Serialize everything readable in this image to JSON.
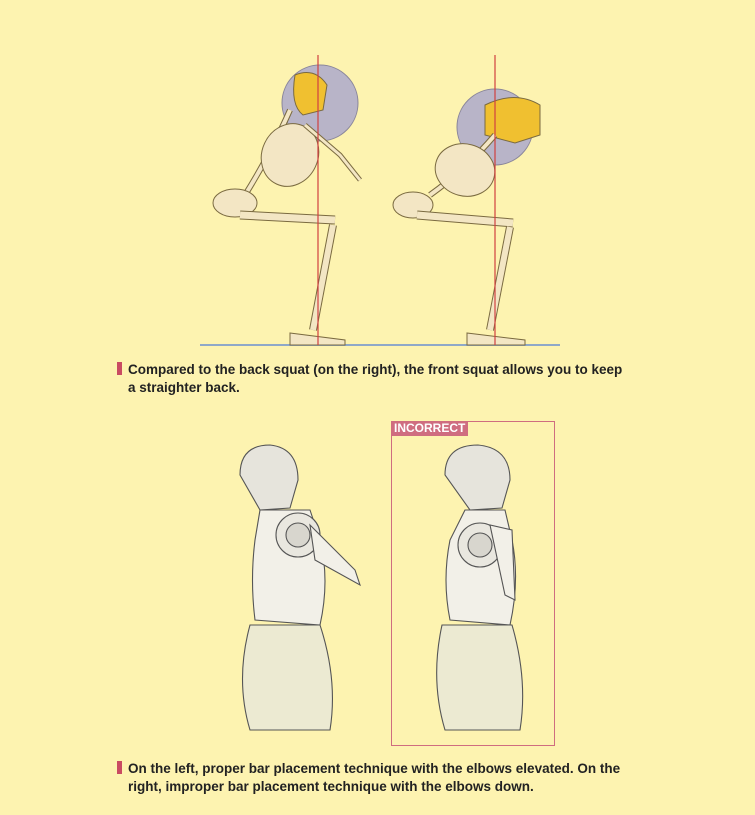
{
  "captions": {
    "squat_line1": "Compared to the back squat (on the right), the front squat allows you to keep",
    "squat_line2": "a straighter back.",
    "bar_line1": "On the left, proper bar placement technique with the elbows elevated. On the",
    "bar_line2": "right, improper bar placement technique with the elbows down."
  },
  "labels": {
    "incorrect": "INCORRECT"
  },
  "colors": {
    "background": "#fdf3b0",
    "accent": "#c94b62",
    "bone": "#f3e6c4",
    "bone_shade": "#f0c030",
    "weight_disc": "#b8b4c8",
    "guide_line": "#d04040"
  }
}
